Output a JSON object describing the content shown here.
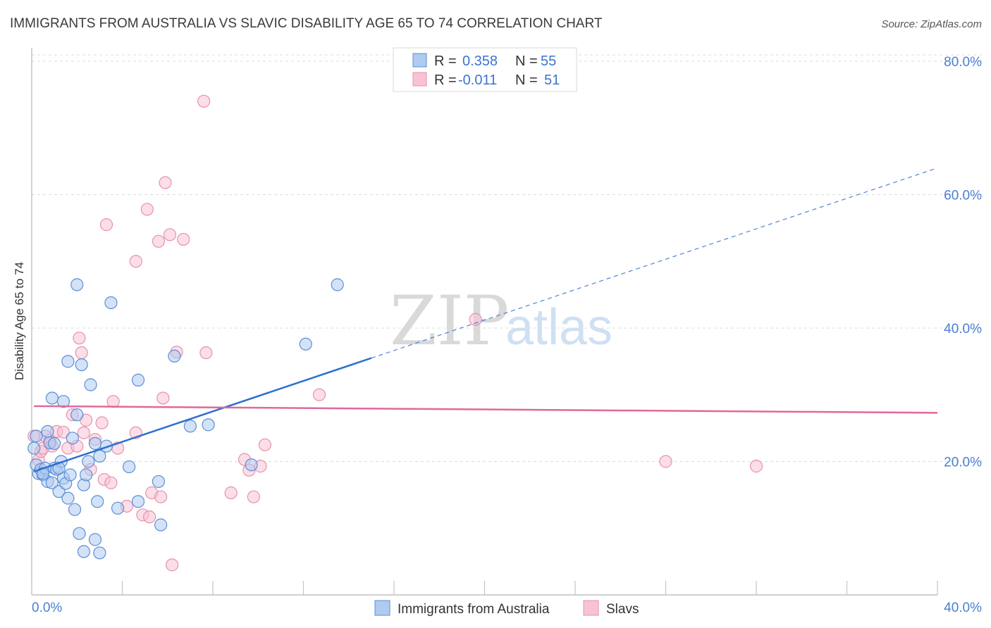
{
  "header": {
    "title": "IMMIGRANTS FROM AUSTRALIA VS SLAVIC DISABILITY AGE 65 TO 74 CORRELATION CHART",
    "source": "Source: ZipAtlas.com"
  },
  "watermark": {
    "zip": "ZIP",
    "atlas": "atlas"
  },
  "colors": {
    "blue_fill": "#aecbf0",
    "blue_stroke": "#5b8fd6",
    "blue_line": "#2f6fce",
    "pink_fill": "#f7c3d3",
    "pink_stroke": "#e891ad",
    "pink_line": "#e0689a",
    "grid": "#dcdcdc",
    "tick_text": "#4a7fd4"
  },
  "legend": {
    "rows": [
      {
        "r_label": "R =",
        "r_value": "0.358",
        "n_label": "N =",
        "n_value": "55"
      },
      {
        "r_label": "R =",
        "r_value": "-0.011",
        "n_label": "N =",
        "n_value": "51"
      }
    ]
  },
  "bottom_legend": [
    "Immigrants from Australia",
    "Slavs"
  ],
  "chart_data": {
    "type": "scatter",
    "title": "IMMIGRANTS FROM AUSTRALIA VS SLAVIC DISABILITY AGE 65 TO 74 CORRELATION CHART",
    "xlabel": "",
    "ylabel": "Disability Age 65 to 74",
    "xlim": [
      0,
      40
    ],
    "ylim": [
      0,
      82
    ],
    "x_tick_labels": [
      "0.0%",
      "40.0%"
    ],
    "y_tick_labels": [
      "20.0%",
      "40.0%",
      "60.0%",
      "80.0%"
    ],
    "y_tick_values": [
      20,
      40,
      60,
      80
    ],
    "grid": true,
    "series": [
      {
        "name": "Immigrants from Australia",
        "r": 0.358,
        "n": 55,
        "trend": {
          "x0": 0.1,
          "y0": 18.5,
          "x1": 15.0,
          "y1": 35.5,
          "x_dash_end": 40.0,
          "y_dash_end": 64.0
        },
        "points": [
          [
            0.1,
            22.0
          ],
          [
            0.2,
            19.5
          ],
          [
            0.3,
            18.2
          ],
          [
            0.4,
            18.8
          ],
          [
            0.5,
            18.0
          ],
          [
            0.6,
            19.0
          ],
          [
            0.7,
            17.0
          ],
          [
            0.7,
            24.5
          ],
          [
            0.8,
            22.8
          ],
          [
            0.9,
            29.5
          ],
          [
            0.9,
            16.8
          ],
          [
            1.0,
            19.0
          ],
          [
            1.1,
            18.8
          ],
          [
            1.2,
            15.5
          ],
          [
            1.3,
            20.0
          ],
          [
            1.4,
            17.5
          ],
          [
            1.4,
            29.0
          ],
          [
            1.5,
            16.7
          ],
          [
            1.6,
            35.0
          ],
          [
            1.6,
            14.5
          ],
          [
            1.7,
            18.0
          ],
          [
            1.8,
            23.5
          ],
          [
            1.9,
            12.8
          ],
          [
            2.0,
            27.0
          ],
          [
            2.0,
            46.5
          ],
          [
            2.1,
            9.2
          ],
          [
            2.2,
            34.5
          ],
          [
            2.3,
            6.5
          ],
          [
            2.3,
            16.5
          ],
          [
            2.4,
            18.0
          ],
          [
            2.5,
            20.0
          ],
          [
            2.6,
            31.5
          ],
          [
            2.8,
            8.3
          ],
          [
            2.8,
            22.7
          ],
          [
            2.9,
            14.0
          ],
          [
            3.0,
            6.3
          ],
          [
            3.0,
            20.8
          ],
          [
            3.3,
            22.3
          ],
          [
            3.5,
            43.8
          ],
          [
            3.8,
            13.0
          ],
          [
            4.3,
            19.2
          ],
          [
            4.7,
            32.2
          ],
          [
            4.7,
            14.0
          ],
          [
            5.6,
            17.0
          ],
          [
            5.7,
            10.5
          ],
          [
            6.3,
            35.8
          ],
          [
            7.0,
            25.3
          ],
          [
            7.8,
            25.5
          ],
          [
            9.7,
            19.5
          ],
          [
            12.1,
            37.6
          ],
          [
            13.5,
            46.5
          ],
          [
            0.2,
            23.8
          ],
          [
            1.0,
            22.7
          ],
          [
            0.5,
            18.2
          ],
          [
            1.2,
            19.0
          ]
        ]
      },
      {
        "name": "Slavs",
        "r": -0.011,
        "n": 51,
        "trend": {
          "x0": 0.1,
          "y0": 28.3,
          "x1": 40.0,
          "y1": 27.3
        },
        "points": [
          [
            0.1,
            23.8
          ],
          [
            0.3,
            20.2
          ],
          [
            0.4,
            21.5
          ],
          [
            0.5,
            22.0
          ],
          [
            0.6,
            23.8
          ],
          [
            0.8,
            23.2
          ],
          [
            0.9,
            22.3
          ],
          [
            1.1,
            24.5
          ],
          [
            1.4,
            24.4
          ],
          [
            1.6,
            22.0
          ],
          [
            1.8,
            27.0
          ],
          [
            2.0,
            22.3
          ],
          [
            2.1,
            38.5
          ],
          [
            2.2,
            36.3
          ],
          [
            2.3,
            24.3
          ],
          [
            2.4,
            26.2
          ],
          [
            2.6,
            18.8
          ],
          [
            2.8,
            23.3
          ],
          [
            3.1,
            25.8
          ],
          [
            3.2,
            17.3
          ],
          [
            3.3,
            55.5
          ],
          [
            3.5,
            16.8
          ],
          [
            3.6,
            29.0
          ],
          [
            3.8,
            22.0
          ],
          [
            4.2,
            13.3
          ],
          [
            4.6,
            24.3
          ],
          [
            4.6,
            50.0
          ],
          [
            4.9,
            12.0
          ],
          [
            5.1,
            57.8
          ],
          [
            5.2,
            11.7
          ],
          [
            5.3,
            15.3
          ],
          [
            5.6,
            53.0
          ],
          [
            5.7,
            14.7
          ],
          [
            5.8,
            29.5
          ],
          [
            5.9,
            61.8
          ],
          [
            6.1,
            54.0
          ],
          [
            6.2,
            4.5
          ],
          [
            6.4,
            36.4
          ],
          [
            6.7,
            53.3
          ],
          [
            7.6,
            74.0
          ],
          [
            7.7,
            36.3
          ],
          [
            8.8,
            15.3
          ],
          [
            9.4,
            20.3
          ],
          [
            9.6,
            18.7
          ],
          [
            9.8,
            14.7
          ],
          [
            10.1,
            19.3
          ],
          [
            10.3,
            22.5
          ],
          [
            12.7,
            30.0
          ],
          [
            19.6,
            41.3
          ],
          [
            28.0,
            20.0
          ],
          [
            32.0,
            19.3
          ]
        ]
      }
    ]
  }
}
